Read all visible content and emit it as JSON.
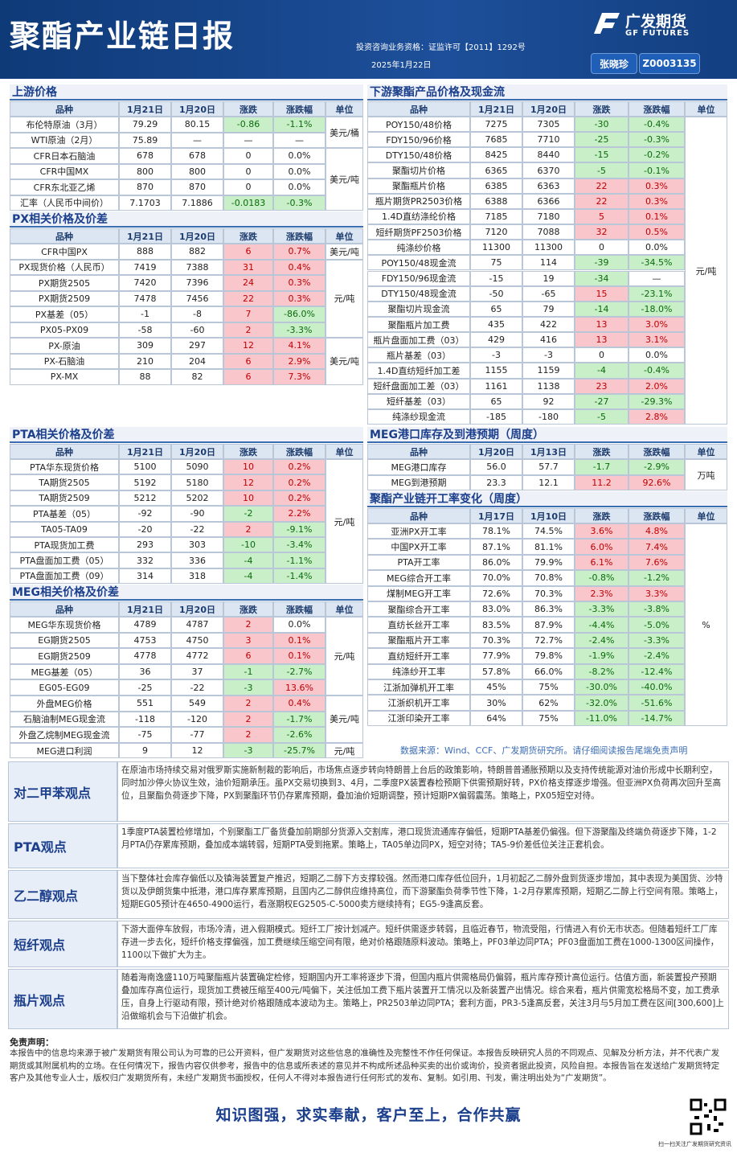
{
  "header": {
    "title": "聚酯产业链日报",
    "license": "投资咨询业务资格：证监许可【2011】1292号",
    "date": "2025年1月22日",
    "logo_cn": "广发期货",
    "logo_en": "GF FUTURES",
    "analyst": "张晓珍",
    "analyst_id": "Z0003135"
  },
  "tables": [
    {
      "title": "上游价格",
      "headers": [
        "品种",
        "1月21日",
        "1月20日",
        "涨跌",
        "涨跌幅",
        "单位"
      ],
      "rows": [
        [
          "布伦特原油（3月）",
          "79.29",
          "80.15",
          "-0.86",
          "-1.1%"
        ],
        [
          "WTI原油（2月）",
          "75.89",
          "—",
          "—",
          "—"
        ],
        [
          "CFR日本石脑油",
          "678",
          "678",
          "0",
          "0.0%"
        ],
        [
          "CFR中国MX",
          "800",
          "800",
          "0",
          "0.0%"
        ],
        [
          "CFR东北亚乙烯",
          "870",
          "870",
          "0",
          "0.0%"
        ],
        [
          "汇率（人民币中间价）",
          "7.1703",
          "7.1886",
          "-0.0183",
          "-0.3%"
        ]
      ],
      "units": [
        "美元/桶",
        null,
        "美元/吨",
        null,
        null,
        null
      ]
    },
    {
      "title": "PX相关价格及价差",
      "headers": [
        "品种",
        "1月21日",
        "1月20日",
        "涨跌",
        "涨跌幅",
        "单位"
      ],
      "rows": [
        [
          "CFR中国PX",
          "888",
          "882",
          "6",
          "0.7%"
        ],
        [
          "PX现货价格（人民币）",
          "7419",
          "7388",
          "31",
          "0.4%"
        ],
        [
          "PX期货2505",
          "7420",
          "7396",
          "24",
          "0.3%"
        ],
        [
          "PX期货2509",
          "7478",
          "7456",
          "22",
          "0.3%"
        ],
        [
          "PX基差（05）",
          "-1",
          "-8",
          "7",
          "-86.0%"
        ],
        [
          "PX05-PX09",
          "-58",
          "-60",
          "2",
          "-3.3%"
        ],
        [
          "PX-原油",
          "309",
          "297",
          "12",
          "4.1%"
        ],
        [
          "PX-石脑油",
          "210",
          "204",
          "6",
          "2.9%"
        ],
        [
          "PX-MX",
          "88",
          "82",
          "6",
          "7.3%"
        ]
      ],
      "units": [
        "美元/吨",
        "元/吨",
        null,
        null,
        null,
        null,
        "美元/吨",
        null,
        null
      ]
    },
    {
      "title": "PTA相关价格及价差",
      "headers": [
        "品种",
        "1月21日",
        "1月20日",
        "涨跌",
        "涨跌幅",
        "单位"
      ],
      "rows": [
        [
          "PTA华东现货价格",
          "5100",
          "5090",
          "10",
          "0.2%"
        ],
        [
          "TA期货2505",
          "5192",
          "5180",
          "12",
          "0.2%"
        ],
        [
          "TA期货2509",
          "5212",
          "5202",
          "10",
          "0.2%"
        ],
        [
          "PTA基差（05）",
          "-92",
          "-90",
          "-2",
          "2.2%"
        ],
        [
          "TA05-TA09",
          "-20",
          "-22",
          "2",
          "-9.1%"
        ],
        [
          "PTA现货加工费",
          "293",
          "303",
          "-10",
          "-3.4%"
        ],
        [
          "PTA盘面加工费（05）",
          "332",
          "336",
          "-4",
          "-1.1%"
        ],
        [
          "PTA盘面加工费（09）",
          "314",
          "318",
          "-4",
          "-1.4%"
        ]
      ],
      "units": [
        "元/吨",
        null,
        null,
        null,
        null,
        null,
        null,
        null
      ]
    },
    {
      "title": "MEG相关价格及价差",
      "headers": [
        "品种",
        "1月21日",
        "1月20日",
        "涨跌",
        "涨跌幅",
        "单位"
      ],
      "rows": [
        [
          "MEG华东现货价格",
          "4789",
          "4787",
          "2",
          "0.0%"
        ],
        [
          "EG期货2505",
          "4753",
          "4750",
          "3",
          "0.1%"
        ],
        [
          "EG期货2509",
          "4778",
          "4772",
          "6",
          "0.1%"
        ],
        [
          "MEG基差（05）",
          "36",
          "37",
          "-1",
          "-2.7%"
        ],
        [
          "EG05-EG09",
          "-25",
          "-22",
          "-3",
          "13.6%"
        ],
        [
          "外盘MEG价格",
          "551",
          "549",
          "2",
          "0.4%"
        ],
        [
          "石脑油制MEG现金流",
          "-118",
          "-120",
          "2",
          "-1.7%"
        ],
        [
          "外盘乙烷制MEG现金流",
          "-75",
          "-77",
          "2",
          "-2.6%"
        ],
        [
          "MEG进口利润",
          "9",
          "12",
          "-3",
          "-25.7%"
        ]
      ],
      "units": [
        "元/吨",
        null,
        null,
        null,
        null,
        "美元/吨",
        null,
        null,
        "元/吨"
      ]
    },
    {
      "title": "下游聚酯产品价格及现金流",
      "headers": [
        "品种",
        "1月21日",
        "1月20日",
        "涨跌",
        "涨跌幅",
        "单位"
      ],
      "rows": [
        [
          "POY150/48价格",
          "7275",
          "7305",
          "-30",
          "-0.4%"
        ],
        [
          "FDY150/96价格",
          "7685",
          "7710",
          "-25",
          "-0.3%"
        ],
        [
          "DTY150/48价格",
          "8425",
          "8440",
          "-15",
          "-0.2%"
        ],
        [
          "聚酯切片价格",
          "6365",
          "6370",
          "-5",
          "-0.1%"
        ],
        [
          "聚酯瓶片价格",
          "6385",
          "6363",
          "22",
          "0.3%"
        ],
        [
          "瓶片期货PR2503价格",
          "6388",
          "6366",
          "22",
          "0.3%"
        ],
        [
          "1.4D直纺涤纶价格",
          "7185",
          "7180",
          "5",
          "0.1%"
        ],
        [
          "短纤期货PF2503价格",
          "7120",
          "7088",
          "32",
          "0.5%"
        ],
        [
          "纯涤纱价格",
          "11300",
          "11300",
          "0",
          "0.0%"
        ],
        [
          "POY150/48现金流",
          "75",
          "114",
          "-39",
          "-34.5%"
        ],
        [
          "FDY150/96现金流",
          "-15",
          "19",
          "-34",
          "—"
        ],
        [
          "DTY150/48现金流",
          "-50",
          "-65",
          "15",
          "-23.1%"
        ],
        [
          "聚酯切片现金流",
          "65",
          "79",
          "-14",
          "-18.0%"
        ],
        [
          "聚酯瓶片加工费",
          "435",
          "422",
          "13",
          "3.0%"
        ],
        [
          "瓶片盘面加工费（03）",
          "429",
          "416",
          "13",
          "3.1%"
        ],
        [
          "瓶片基差（03）",
          "-3",
          "-3",
          "0",
          "0.0%"
        ],
        [
          "1.4D直纺短纤加工差",
          "1155",
          "1159",
          "-4",
          "-0.4%"
        ],
        [
          "短纤盘面加工差（03）",
          "1161",
          "1138",
          "23",
          "2.0%"
        ],
        [
          "短纤基差（03）",
          "65",
          "92",
          "-27",
          "-29.3%"
        ],
        [
          "纯涤纱现金流",
          "-185",
          "-180",
          "-5",
          "2.8%"
        ]
      ],
      "units": [
        "元/吨",
        null,
        null,
        null,
        null,
        null,
        null,
        null,
        null,
        null,
        null,
        null,
        null,
        null,
        null,
        null,
        null,
        null,
        null,
        null
      ]
    },
    {
      "title": "MEG港口库存及到港预期（周度）",
      "headers": [
        "品种",
        "1月20日",
        "1月13日",
        "涨跌",
        "涨跌幅",
        "单位"
      ],
      "rows": [
        [
          "MEG港口库存",
          "56.0",
          "57.7",
          "-1.7",
          "-2.9%"
        ],
        [
          "MEG到港预期",
          "23.3",
          "12.1",
          "11.2",
          "92.6%"
        ]
      ],
      "units": [
        "万吨",
        null
      ]
    },
    {
      "title": "聚酯产业链开工率变化（周度）",
      "headers": [
        "品种",
        "1月17日",
        "1月10日",
        "涨跌",
        "涨跌幅",
        "单位"
      ],
      "rows": [
        [
          "亚洲PX开工率",
          "78.1%",
          "74.5%",
          "3.6%",
          "4.8%"
        ],
        [
          "中国PX开工率",
          "87.1%",
          "81.1%",
          "6.0%",
          "7.4%"
        ],
        [
          "PTA开工率",
          "86.0%",
          "79.9%",
          "6.1%",
          "7.6%"
        ],
        [
          "MEG综合开工率",
          "70.0%",
          "70.8%",
          "-0.8%",
          "-1.2%"
        ],
        [
          "煤制MEG开工率",
          "72.6%",
          "70.3%",
          "2.3%",
          "3.3%"
        ],
        [
          "聚酯综合开工率",
          "83.0%",
          "86.3%",
          "-3.3%",
          "-3.8%"
        ],
        [
          "直纺长丝开工率",
          "83.5%",
          "87.9%",
          "-4.4%",
          "-5.0%"
        ],
        [
          "聚酯瓶片开工率",
          "70.3%",
          "72.7%",
          "-2.4%",
          "-3.3%"
        ],
        [
          "直纺短纤开工率",
          "77.9%",
          "79.8%",
          "-1.9%",
          "-2.4%"
        ],
        [
          "纯涤纱开工率",
          "57.8%",
          "66.0%",
          "-8.2%",
          "-12.4%"
        ],
        [
          "江浙加弹机开工率",
          "45%",
          "75%",
          "-30.0%",
          "-40.0%"
        ],
        [
          "江浙织机开工率",
          "30%",
          "62%",
          "-32.0%",
          "-51.6%"
        ],
        [
          "江浙印染开工率",
          "64%",
          "75%",
          "-11.0%",
          "-14.7%"
        ]
      ],
      "units": [
        "%",
        null,
        null,
        null,
        null,
        null,
        null,
        null,
        null,
        null,
        null,
        null,
        null
      ]
    }
  ],
  "source": "数据来源：Wind、CCF、广发期货研究所。请仔细阅读报告尾端免责声明",
  "views": [
    {
      "label": "对二甲苯观点",
      "text": "在原油市场持续交易对俄罗斯实施新制裁的影响后，市场焦点逐步转向特朗普上台后的政策影响，特朗普普通胀预期以及支持传统能源对油价形成中长期利空，同时加沙停火协议生效，油价短期承压。虽PX交易切换到3、4月，二季度PX装置春检预期下供需预期好转，PX价格支撑逐步增强。但亚洲PX负荷再次回升至高位，且聚酯负荷逐步下降，PX到聚酯环节仍存累库预期，叠加油价短期调整，预计短期PX偏弱震荡。策略上，PX05短空对待。"
    },
    {
      "label": "PTA观点",
      "text": "1季度PTA装置检修增加，个别聚酯工厂备货叠加前期部分货源入交割库，港口现货流通库存偏低，短期PTA基差仍偏强。但下游聚酯及终端负荷逐步下降，1-2月PTA仍存累库预期，叠加成本端转弱，短期PTA受到拖累。策略上，TA05单边同PX，短空对待；TA5-9价差低位关注正套机会。"
    },
    {
      "label": "乙二醇观点",
      "text": "当下整体社会库存偏低以及镇海装置复产推迟，短期乙二醇下方支撑较强。然而港口库存低位回升，1月初起乙二醇外盘到货逐步增加，其中表现为美国货、沙特货以及伊朗货集中抵港，港口库存累库预期，且国内乙二醇供应维持高位，而下游聚酯负荷季节性下降，1-2月存累库预期，短期乙二醇上行空间有限。策略上，短期EG05预计在4650-4900运行，看涨期权EG2505-C-5000卖方继续持有；EG5-9逢高反套。"
    },
    {
      "label": "短纤观点",
      "text": "下游大面停车放假，市场冷清，进入假期模式。短纤工厂按计划减产。短纤供需逐步转弱，且临近春节，物流受阻，行情进入有价无市状态。但随着短纤工厂库存进一步去化，短纤价格支撑偏强，加工费继续压缩空间有限，绝对价格跟随原料波动。策略上，PF03单边同PTA；PF03盘面加工费在1000-1300区间操作，1100以下做扩大为主。"
    },
    {
      "label": "瓶片观点",
      "text": "随着海南逸盛110万吨聚酯瓶片装置确定检修，短期国内开工率将逐步下滑，但国内瓶片供需格局仍偏弱，瓶片库存预计高位运行。估值方面，新装置投产预期叠加库存高位运行，现货加工费被压缩至400元/吨偏下，关注低加工费下瓶片装置开工情况以及新装置产出情况。综合来看，瓶片供需宽松格局不变，加工费承压，自身上行驱动有限，预计绝对价格跟随成本波动为主。策略上，PR2503单边同PTA；套利方面，PR3-5逢高反套，关注3月与5月加工费在区间[300,600]上沿做缩机会与下沿做扩机会。"
    }
  ],
  "disclaimer": {
    "title": "免责声明：",
    "text": "本报告中的信息均来源于被广发期货有限公司认为可靠的已公开资料，但广发期货对这些信息的准确性及完整性不作任何保证。本报告反映研究人员的不同观点、见解及分析方法，并不代表广发期货或其附属机构的立场。在任何情况下，报告内容仅供参考，报告中的信息或所表述的意见并不构成所述品种买卖的出价或询价，投资者据此投资，风险自担。本报告旨在发送给广发期货特定客户及其他专业人士，版权归广发期货所有，未经广发期货书面授权，任何人不得对本报告进行任何形式的发布、复制。如引用、刊发，需注明出处为“广发期货”。"
  },
  "footer": {
    "slogan": "知识图强，求实奉献，客户至上，合作共赢",
    "qr_caption": "扫一扫关注广发期货研究资讯"
  }
}
